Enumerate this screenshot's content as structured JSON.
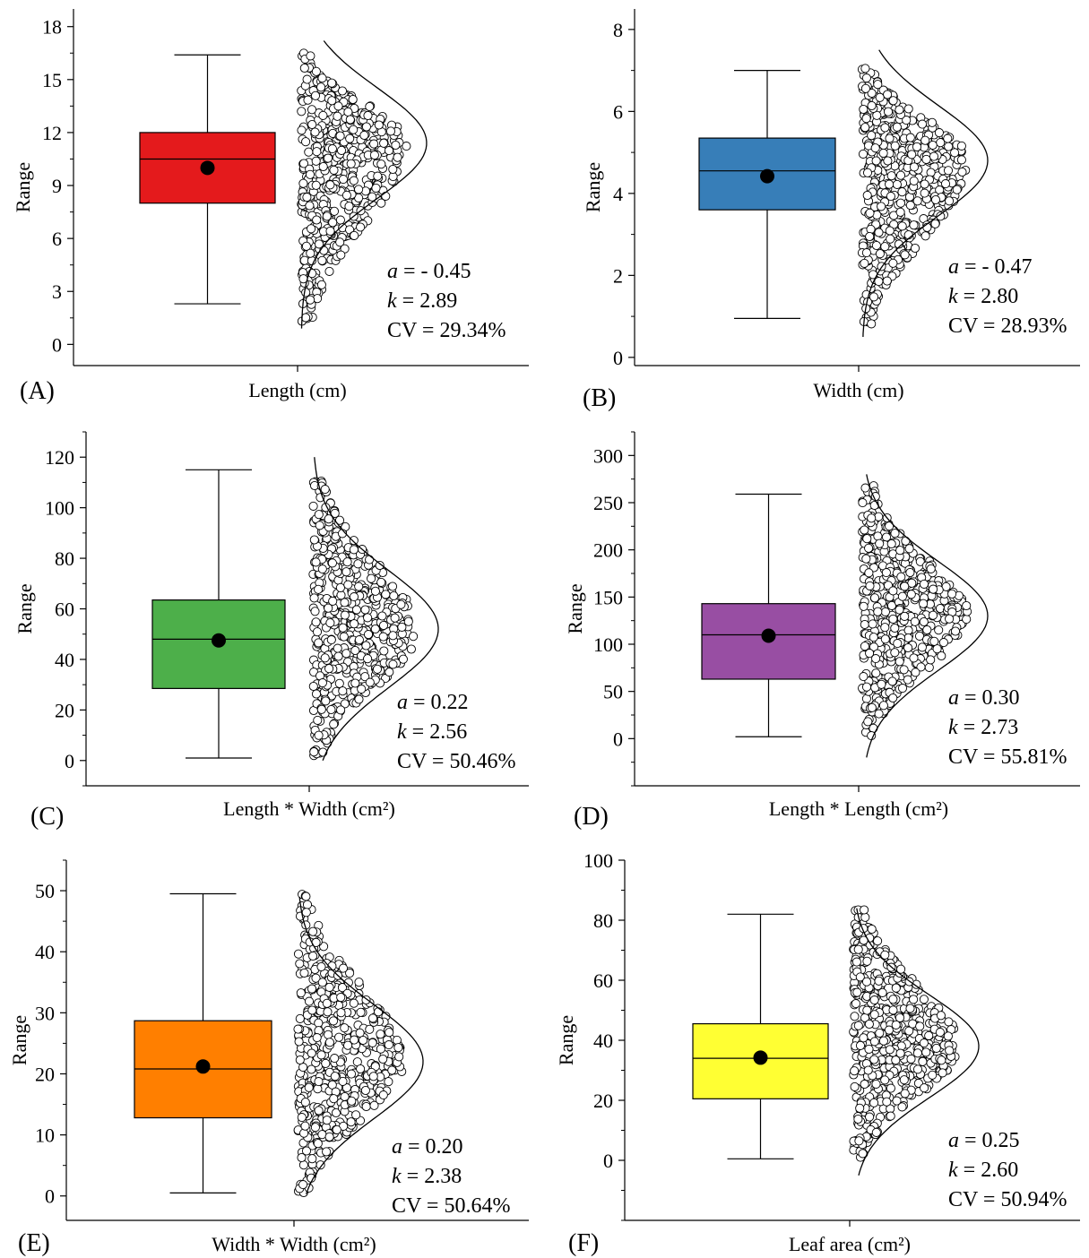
{
  "chart_data": [
    {
      "panel": "(A)",
      "type": "box",
      "xlabel": "Length (cm)",
      "ylabel": "Range",
      "ylim": [
        -1.2,
        19
      ],
      "yticks": [
        0,
        3,
        6,
        9,
        12,
        15,
        18
      ],
      "minor_step": 1.5,
      "box": {
        "min": 2.3,
        "q1": 8.0,
        "median": 10.5,
        "q3": 12.0,
        "max": 16.4,
        "mean": 10.0,
        "color": "#e41a1c"
      },
      "distribution": {
        "min": 1.3,
        "max": 16.5,
        "mode": 11.4,
        "curve_min": 0.9,
        "curve_max": 17.2
      },
      "stats": {
        "a": "- 0.45",
        "k": "2.89",
        "cv": "29.34%"
      }
    },
    {
      "panel": "(B)",
      "type": "box",
      "xlabel": "Width (cm)",
      "ylabel": "Range",
      "ylim": [
        -0.2,
        8.5
      ],
      "yticks": [
        0,
        2,
        4,
        6,
        8
      ],
      "minor_step": 1,
      "box": {
        "min": 0.95,
        "q1": 3.6,
        "median": 4.55,
        "q3": 5.35,
        "max": 7.0,
        "mean": 4.42,
        "color": "#377eb8"
      },
      "distribution": {
        "min": 0.7,
        "max": 7.05,
        "mode": 4.8,
        "curve_min": 0.5,
        "curve_max": 7.5
      },
      "stats": {
        "a": "- 0.47",
        "k": "2.80",
        "cv": "28.93%"
      }
    },
    {
      "panel": "(C)",
      "type": "box",
      "xlabel": "Length * Width (cm²)",
      "ylabel": "Range",
      "ylim": [
        -10,
        130
      ],
      "yticks": [
        0,
        20,
        40,
        60,
        80,
        100,
        120
      ],
      "minor_step": 10,
      "box": {
        "min": 1,
        "q1": 28.5,
        "median": 48,
        "q3": 63.5,
        "max": 115,
        "mean": 47.5,
        "color": "#4daf4a"
      },
      "distribution": {
        "min": 1.5,
        "max": 111,
        "mode": 52,
        "curve_min": 0,
        "curve_max": 120
      },
      "stats": {
        "a": "0.22",
        "k": "2.56",
        "cv": "50.46%"
      }
    },
    {
      "panel": "(D)",
      "type": "box",
      "xlabel": "Length * Length (cm²)",
      "ylabel": "Range",
      "ylim": [
        -50,
        325
      ],
      "yticks": [
        0,
        50,
        100,
        150,
        200,
        250,
        300
      ],
      "minor_step": 25,
      "box": {
        "min": 2,
        "q1": 63,
        "median": 110,
        "q3": 143,
        "max": 259,
        "mean": 109,
        "color": "#984ea3"
      },
      "distribution": {
        "min": 3,
        "max": 268,
        "mode": 130,
        "curve_min": -20,
        "curve_max": 280
      },
      "stats": {
        "a": "0.30",
        "k": "2.73",
        "cv": "55.81%"
      }
    },
    {
      "panel": "(E)",
      "type": "box",
      "xlabel": "Width * Width (cm²)",
      "ylabel": "Range",
      "ylim": [
        -4,
        55
      ],
      "yticks": [
        0,
        10,
        20,
        30,
        40,
        50
      ],
      "minor_step": 5,
      "box": {
        "min": 0.5,
        "q1": 12.8,
        "median": 20.8,
        "q3": 28.7,
        "max": 49.5,
        "mean": 21.2,
        "color": "#ff7f00"
      },
      "distribution": {
        "min": 0.5,
        "max": 49.6,
        "mode": 22,
        "curve_min": 0.3,
        "curve_max": 49
      },
      "stats": {
        "a": "0.20",
        "k": "2.38",
        "cv": "50.64%"
      }
    },
    {
      "panel": "(F)",
      "type": "box",
      "xlabel": "Leaf area (cm²)",
      "ylabel": "Range",
      "ylim": [
        -20,
        100
      ],
      "yticks": [
        0,
        20,
        40,
        60,
        80,
        100
      ],
      "minor_step": 10,
      "box": {
        "min": 0.5,
        "q1": 20.5,
        "median": 34,
        "q3": 45.5,
        "max": 82,
        "mean": 34.2,
        "color": "#ffff33"
      },
      "distribution": {
        "min": 1,
        "max": 84,
        "mode": 38,
        "curve_min": -5,
        "curve_max": 84
      },
      "stats": {
        "a": "0.25",
        "k": "2.60",
        "cv": "50.94%"
      }
    }
  ]
}
